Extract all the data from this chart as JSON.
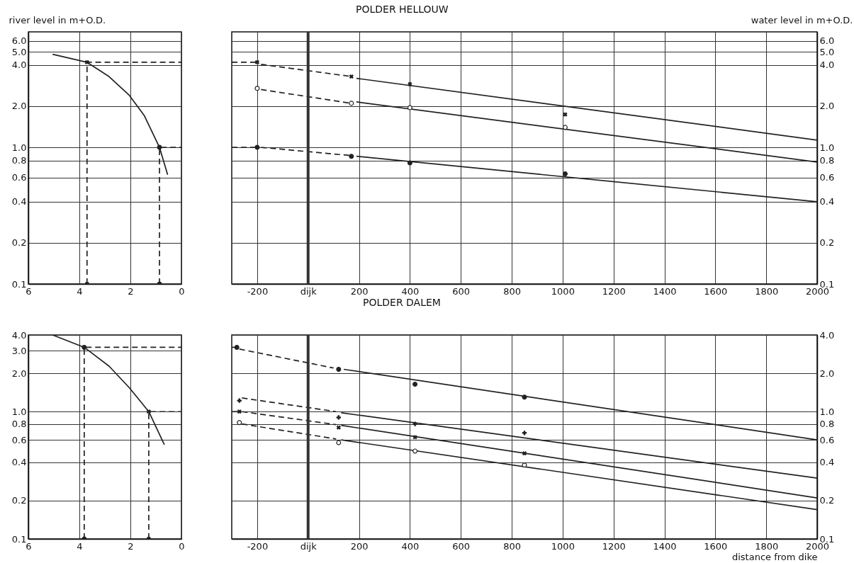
{
  "chart_data": [
    {
      "type": "line",
      "ylabel": "river level in m+O.D.",
      "xlim": [
        6,
        0
      ],
      "xticks": [
        6,
        4,
        2,
        0
      ],
      "ylim": [
        0.1,
        7
      ],
      "yticks": [
        0.1,
        0.2,
        0.4,
        0.6,
        0.8,
        {
          "value": 1,
          "label": "1.0"
        },
        {
          "value": 2,
          "label": "2.0"
        },
        {
          "value": 4,
          "label": "4.0"
        },
        {
          "value": 5,
          "label": "5.0"
        },
        {
          "value": 6,
          "label": "6.0"
        }
      ],
      "log": "y",
      "grid": true,
      "series": [
        {
          "type": "line",
          "color": "#222222",
          "line_style": "solid",
          "x": [
            5.05,
            3.71,
            2.84,
            2.04,
            1.45,
            0.86,
            0.54
          ],
          "values": [
            4.8,
            4.2,
            3.3,
            2.4,
            1.7,
            1.0,
            0.63
          ]
        },
        {
          "type": "line",
          "color": "#222222",
          "line_style": "dashed",
          "x": [
            3.7,
            3.7,
            0
          ],
          "values": [
            0.1,
            4.2,
            4.2
          ]
        },
        {
          "type": "line",
          "color": "#222222",
          "line_style": "dashed",
          "x": [
            0.86,
            0.86,
            0
          ],
          "values": [
            0.1,
            1.0,
            1.0
          ]
        },
        {
          "type": "scatter",
          "color": "#222222",
          "marker": "cross",
          "x": [
            3.7,
            3.7
          ],
          "values": [
            4.2,
            0.1
          ]
        },
        {
          "type": "scatter",
          "color": "#222222",
          "marker": "circle",
          "x": [
            0.86,
            0.86
          ],
          "values": [
            1.0,
            0.1
          ]
        }
      ]
    },
    {
      "type": "line",
      "title": "POLDER HELLOUW",
      "y2label": "water level in m+O.D.",
      "xlim": [
        -300,
        2000
      ],
      "xticks": [
        -200,
        {
          "value": 0,
          "label": "dijk"
        },
        200,
        400,
        600,
        800,
        1000,
        1200,
        1400,
        1600,
        1800,
        2000
      ],
      "y2lim": [
        0.1,
        7
      ],
      "y2ticks": [
        0.1,
        0.2,
        0.4,
        0.6,
        0.8,
        {
          "value": 1,
          "label": "1.0"
        },
        {
          "value": 2,
          "label": "2.0"
        },
        {
          "value": 4,
          "label": "4.0"
        },
        {
          "value": 5,
          "label": "5.0"
        },
        {
          "value": 6,
          "label": "6.0"
        }
      ],
      "log": "y2",
      "grid": true,
      "ref_lines": [
        {
          "axis": "x",
          "value": 0,
          "color": "#333333"
        }
      ],
      "series": [
        {
          "type": "line",
          "axis": "y2",
          "color": "#222222",
          "line_style": "dashed",
          "x": [
            -300,
            -200
          ],
          "values": [
            4.2,
            4.2
          ]
        },
        {
          "type": "line",
          "axis": "y2",
          "color": "#222222",
          "line_style": "dashed",
          "x": [
            -300,
            -200
          ],
          "values": [
            1.0,
            1.0
          ]
        },
        {
          "type": "line",
          "axis": "y2",
          "color": "#222222",
          "line_style": "dashed",
          "x": [
            -185,
            170
          ],
          "values": [
            4.05,
            3.3
          ]
        },
        {
          "type": "line",
          "axis": "y2",
          "color": "#222222",
          "line_style": "solid",
          "x": [
            190,
            2000
          ],
          "values": [
            3.2,
            1.13
          ]
        },
        {
          "type": "scatter",
          "axis": "y2",
          "color": "#222222",
          "marker": "cross",
          "x": [
            -200,
            170,
            400,
            1010
          ],
          "values": [
            4.2,
            3.3,
            2.9,
            1.74
          ]
        },
        {
          "type": "line",
          "axis": "y2",
          "color": "#222222",
          "line_style": "dashed",
          "x": [
            -185,
            170
          ],
          "values": [
            2.65,
            2.1
          ]
        },
        {
          "type": "line",
          "axis": "y2",
          "color": "#222222",
          "line_style": "solid",
          "x": [
            190,
            2000
          ],
          "values": [
            2.15,
            0.78
          ]
        },
        {
          "type": "scatter",
          "axis": "y2",
          "color": "#222222",
          "marker": "circle-open",
          "x": [
            -200,
            170,
            400,
            1010
          ],
          "values": [
            2.7,
            2.1,
            1.95,
            1.4
          ]
        },
        {
          "type": "line",
          "axis": "y2",
          "color": "#222222",
          "line_style": "dashed",
          "x": [
            -185,
            170
          ],
          "values": [
            1.0,
            0.87
          ]
        },
        {
          "type": "line",
          "axis": "y2",
          "color": "#222222",
          "line_style": "solid",
          "x": [
            190,
            2000
          ],
          "values": [
            0.86,
            0.4
          ]
        },
        {
          "type": "scatter",
          "axis": "y2",
          "color": "#222222",
          "marker": "circle",
          "x": [
            -200,
            170,
            400,
            1010
          ],
          "values": [
            1.0,
            0.86,
            0.77,
            0.64
          ]
        }
      ]
    },
    {
      "type": "line",
      "xlim": [
        6,
        0
      ],
      "xticks": [
        6,
        4,
        2,
        0
      ],
      "ylim": [
        0.1,
        4
      ],
      "yticks": [
        0.1,
        0.2,
        0.4,
        0.6,
        0.8,
        {
          "value": 1,
          "label": "1.0"
        },
        {
          "value": 2,
          "label": "2.0"
        },
        {
          "value": 3,
          "label": "3.0"
        },
        {
          "value": 4,
          "label": "4.0"
        }
      ],
      "log": "y",
      "grid": true,
      "series": [
        {
          "type": "line",
          "color": "#222222",
          "line_style": "solid",
          "x": [
            5.05,
            3.81,
            2.83,
            2.03,
            1.28,
            0.67
          ],
          "values": [
            4.0,
            3.2,
            2.27,
            1.53,
            1.0,
            0.55
          ]
        },
        {
          "type": "line",
          "color": "#222222",
          "line_style": "dashed",
          "x": [
            3.81,
            3.81,
            0
          ],
          "values": [
            0.1,
            3.2,
            3.2
          ]
        },
        {
          "type": "line",
          "color": "#222222",
          "line_style": "dashed",
          "x": [
            1.28,
            1.28,
            0
          ],
          "values": [
            0.1,
            1.0,
            1.0
          ]
        },
        {
          "type": "scatter",
          "color": "#222222",
          "marker": "circle",
          "x": [
            3.81,
            3.81
          ],
          "values": [
            3.2,
            0.1
          ]
        },
        {
          "type": "scatter",
          "color": "#222222",
          "marker": "cross",
          "x": [
            1.28,
            1.28
          ],
          "values": [
            1.0,
            0.1
          ]
        }
      ]
    },
    {
      "type": "line",
      "title": "POLDER DALEM",
      "xlabel": "distance from dike",
      "xlim": [
        -300,
        2000
      ],
      "xticks": [
        -200,
        {
          "value": 0,
          "label": "dijk"
        },
        200,
        400,
        600,
        800,
        1000,
        1200,
        1400,
        1600,
        1800,
        2000
      ],
      "y2lim": [
        0.1,
        4
      ],
      "y2ticks": [
        0.1,
        0.2,
        0.4,
        0.6,
        0.8,
        {
          "value": 1,
          "label": "1.0"
        },
        {
          "value": 2,
          "label": "2.0"
        },
        {
          "value": 4,
          "label": "4.0"
        }
      ],
      "log": "y2",
      "grid": true,
      "ref_lines": [
        {
          "axis": "x",
          "value": 0,
          "color": "#333333"
        }
      ],
      "series": [
        {
          "type": "line",
          "axis": "y2",
          "color": "#222222",
          "line_style": "dashed",
          "x": [
            -300,
            -280
          ],
          "values": [
            3.2,
            3.2
          ]
        },
        {
          "type": "line",
          "axis": "y2",
          "color": "#222222",
          "line_style": "dashed",
          "x": [
            -300,
            -270
          ],
          "values": [
            1.0,
            1.0
          ]
        },
        {
          "type": "line",
          "axis": "y2",
          "color": "#222222",
          "line_style": "dashed",
          "x": [
            -270,
            100
          ],
          "values": [
            3.1,
            2.2
          ]
        },
        {
          "type": "line",
          "axis": "y2",
          "color": "#222222",
          "line_style": "solid",
          "x": [
            140,
            2000
          ],
          "values": [
            2.15,
            0.6
          ]
        },
        {
          "type": "scatter",
          "axis": "y2",
          "color": "#222222",
          "marker": "circle",
          "x": [
            -280,
            120,
            420,
            850
          ],
          "values": [
            3.2,
            2.15,
            1.64,
            1.3
          ]
        },
        {
          "type": "line",
          "axis": "y2",
          "color": "#222222",
          "line_style": "dashed",
          "x": [
            -260,
            110
          ],
          "values": [
            1.28,
            1.0
          ]
        },
        {
          "type": "line",
          "axis": "y2",
          "color": "#222222",
          "line_style": "solid",
          "x": [
            130,
            2000
          ],
          "values": [
            0.98,
            0.3
          ]
        },
        {
          "type": "scatter",
          "axis": "y2",
          "color": "#222222",
          "marker": "plus",
          "x": [
            -270,
            120,
            420,
            850
          ],
          "values": [
            1.22,
            0.9,
            0.8,
            0.68
          ]
        },
        {
          "type": "line",
          "axis": "y2",
          "color": "#222222",
          "line_style": "dashed",
          "x": [
            -260,
            110
          ],
          "values": [
            1.0,
            0.79
          ]
        },
        {
          "type": "line",
          "axis": "y2",
          "color": "#222222",
          "line_style": "solid",
          "x": [
            130,
            2000
          ],
          "values": [
            0.78,
            0.21
          ]
        },
        {
          "type": "scatter",
          "axis": "y2",
          "color": "#222222",
          "marker": "cross",
          "x": [
            -270,
            120,
            420,
            850
          ],
          "values": [
            1.0,
            0.75,
            0.63,
            0.47
          ]
        },
        {
          "type": "line",
          "axis": "y2",
          "color": "#222222",
          "line_style": "dashed",
          "x": [
            -260,
            110
          ],
          "values": [
            0.8,
            0.61
          ]
        },
        {
          "type": "line",
          "axis": "y2",
          "color": "#222222",
          "line_style": "solid",
          "x": [
            130,
            2000
          ],
          "values": [
            0.6,
            0.17
          ]
        },
        {
          "type": "scatter",
          "axis": "y2",
          "color": "#222222",
          "marker": "circle-open",
          "x": [
            -270,
            120,
            420,
            850
          ],
          "values": [
            0.82,
            0.57,
            0.49,
            0.38
          ]
        }
      ]
    }
  ]
}
